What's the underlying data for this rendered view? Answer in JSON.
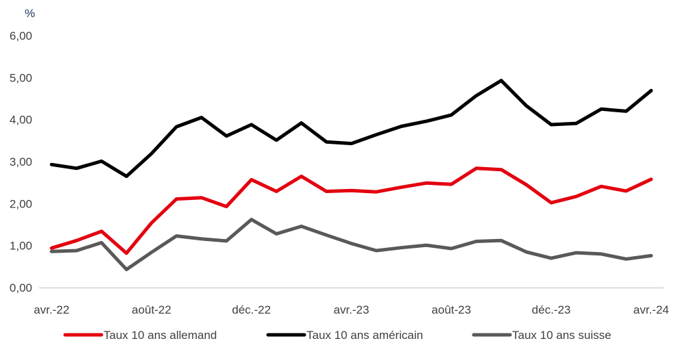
{
  "chart_data": {
    "type": "line",
    "unit_label": "%",
    "ylim": [
      0,
      6
    ],
    "y_ticks": [
      "0,00",
      "1,00",
      "2,00",
      "3,00",
      "4,00",
      "5,00",
      "6,00"
    ],
    "x_tick_labels": [
      {
        "index": 0,
        "label": "avr.-22"
      },
      {
        "index": 4,
        "label": "août-22"
      },
      {
        "index": 8,
        "label": "déc.-22"
      },
      {
        "index": 12,
        "label": "avr.-23"
      },
      {
        "index": 16,
        "label": "août-23"
      },
      {
        "index": 20,
        "label": "déc.-23"
      },
      {
        "index": 24,
        "label": "avr.-24"
      }
    ],
    "x": [
      "2022-04-01",
      "2022-05-01",
      "2022-06-01",
      "2022-07-01",
      "2022-08-01",
      "2022-09-01",
      "2022-10-01",
      "2022-11-01",
      "2022-12-01",
      "2023-01-01",
      "2023-02-01",
      "2023-03-01",
      "2023-04-01",
      "2023-05-01",
      "2023-06-01",
      "2023-07-01",
      "2023-08-01",
      "2023-09-01",
      "2023-10-01",
      "2023-11-01",
      "2023-12-01",
      "2024-01-01",
      "2024-02-01",
      "2024-03-01",
      "2024-04-01"
    ],
    "grid": false,
    "legend_position": "bottom",
    "series": [
      {
        "name": "Taux 10 ans allemand",
        "color": "#e3000f",
        "values": [
          0.94,
          1.12,
          1.34,
          0.82,
          1.54,
          2.11,
          2.14,
          1.93,
          2.57,
          2.29,
          2.65,
          2.29,
          2.31,
          2.28,
          2.39,
          2.49,
          2.46,
          2.84,
          2.81,
          2.45,
          2.02,
          2.17,
          2.41,
          2.3,
          2.58
        ]
      },
      {
        "name": "Taux 10 ans américain",
        "color": "#000000",
        "values": [
          2.93,
          2.84,
          3.01,
          2.65,
          3.19,
          3.83,
          4.05,
          3.61,
          3.88,
          3.51,
          3.92,
          3.47,
          3.43,
          3.64,
          3.84,
          3.96,
          4.11,
          4.57,
          4.93,
          4.33,
          3.88,
          3.91,
          4.25,
          4.2,
          4.69
        ]
      },
      {
        "name": "Taux 10 ans suisse",
        "color": "#595959",
        "values": [
          0.86,
          0.88,
          1.07,
          0.43,
          0.84,
          1.23,
          1.16,
          1.11,
          1.62,
          1.28,
          1.46,
          1.25,
          1.05,
          0.88,
          0.95,
          1.01,
          0.93,
          1.1,
          1.12,
          0.85,
          0.7,
          0.83,
          0.8,
          0.68,
          0.76
        ]
      }
    ]
  }
}
